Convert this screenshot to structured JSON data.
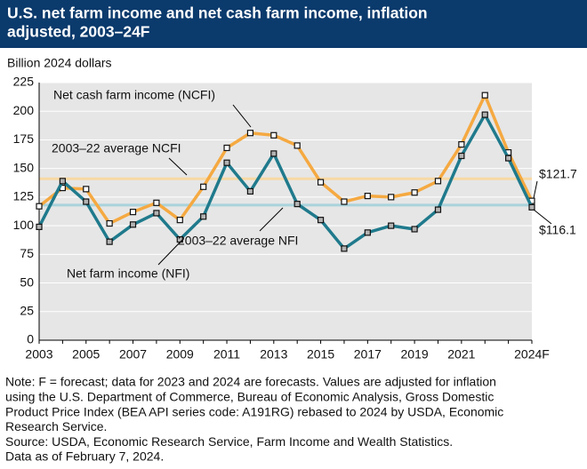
{
  "chart_data": {
    "type": "line",
    "title": [
      "U.S. net farm income and net cash farm income, inflation",
      "adjusted, 2003–24F"
    ],
    "y_label": "Billion 2024 dollars",
    "categories": [
      "2003",
      null,
      "2005",
      null,
      "2007",
      null,
      "2009",
      null,
      "2011",
      null,
      "2013",
      null,
      "2015",
      null,
      "2017",
      null,
      "2019",
      null,
      "2021",
      null,
      null,
      "2024F"
    ],
    "series": [
      {
        "name": "Net cash farm income (NCFI)",
        "color": "#f5a941",
        "marker_fill": "#ffffff",
        "values": [
          117,
          133,
          132,
          102,
          112,
          120,
          105,
          134,
          168,
          181,
          179,
          170,
          138,
          121,
          126,
          125,
          129,
          139,
          171,
          214,
          164,
          121.7
        ],
        "value_labels": [
          null,
          null,
          null,
          null,
          null,
          null,
          null,
          null,
          null,
          null,
          null,
          null,
          null,
          null,
          null,
          null,
          null,
          null,
          null,
          null,
          null,
          "$121.7"
        ]
      },
      {
        "name": "Net farm income (NFI)",
        "color": "#1f7a8c",
        "marker_fill": "#b3b3b3",
        "values": [
          99,
          139,
          121,
          86,
          101,
          111,
          88,
          108,
          155,
          130,
          163,
          119,
          105,
          80,
          94,
          100,
          97,
          114,
          161,
          197,
          159,
          116.1
        ],
        "value_labels": [
          null,
          null,
          null,
          null,
          null,
          null,
          null,
          null,
          null,
          null,
          null,
          null,
          null,
          null,
          null,
          null,
          null,
          null,
          null,
          null,
          null,
          "$116.1"
        ]
      }
    ],
    "reference_lines": [
      {
        "label": "2003–22 average NCFI",
        "value": 141,
        "color": "#f8d9a4"
      },
      {
        "label": "2003–22 average NFI",
        "value": 118,
        "color": "#a9d3dc"
      }
    ],
    "ylim": [
      0,
      225
    ],
    "yticks": [
      0,
      25,
      50,
      75,
      100,
      125,
      150,
      175,
      200,
      225
    ],
    "grid": true,
    "notes": [
      "Note: F = forecast; data for 2023 and 2024 are forecasts. Values are adjusted for inflation",
      "using the U.S. Department of Commerce, Bureau of Economic Analysis, Gross Domestic",
      "Product Price Index (BEA API series code: A191RG) rebased to 2024 by USDA, Economic",
      "Research Service.",
      "Source: USDA, Economic Research Service, Farm Income and Wealth Statistics.",
      "Data as of February 7, 2024."
    ]
  }
}
